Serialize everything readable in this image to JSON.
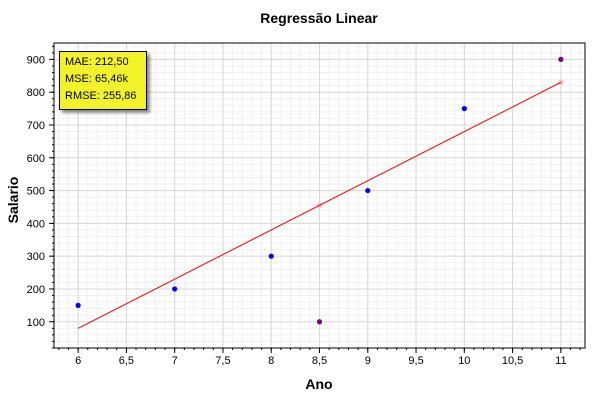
{
  "chart_data": {
    "type": "scatter",
    "title": "Regressão Linear",
    "xlabel": "Ano",
    "ylabel": "Salario",
    "xlim": [
      5.75,
      11.25
    ],
    "ylim": [
      20,
      950
    ],
    "x_ticks": [
      6,
      6.5,
      7,
      7.5,
      8,
      8.5,
      9,
      9.5,
      10,
      10.5,
      11
    ],
    "x_tick_labels": [
      "6",
      "6,5",
      "7",
      "7,5",
      "8",
      "8,5",
      "9",
      "9,5",
      "10",
      "10,5",
      "11"
    ],
    "y_ticks": [
      100,
      200,
      300,
      400,
      500,
      600,
      700,
      800,
      900
    ],
    "y_tick_labels": [
      "100",
      "200",
      "300",
      "400",
      "500",
      "600",
      "700",
      "800",
      "900"
    ],
    "grid": true,
    "series": [
      {
        "points": [
          [
            6,
            150
          ],
          [
            7,
            200
          ],
          [
            8,
            300
          ],
          [
            9,
            500
          ],
          [
            10,
            750
          ]
        ],
        "color": "#0000ff"
      },
      {
        "points": [
          [
            8.5,
            100
          ],
          [
            11,
            900
          ]
        ],
        "color": "#800080"
      },
      {
        "points": [
          [
            8.5,
            455
          ],
          [
            11,
            830
          ]
        ],
        "color": "#ffb6c1"
      },
      {
        "line": [
          [
            6,
            80
          ],
          [
            11,
            830
          ]
        ],
        "color": "#ff0000"
      }
    ],
    "annotations": [
      "MAE: 212,50",
      "MSE: 65,46k",
      "RMSE: 255,86"
    ]
  }
}
